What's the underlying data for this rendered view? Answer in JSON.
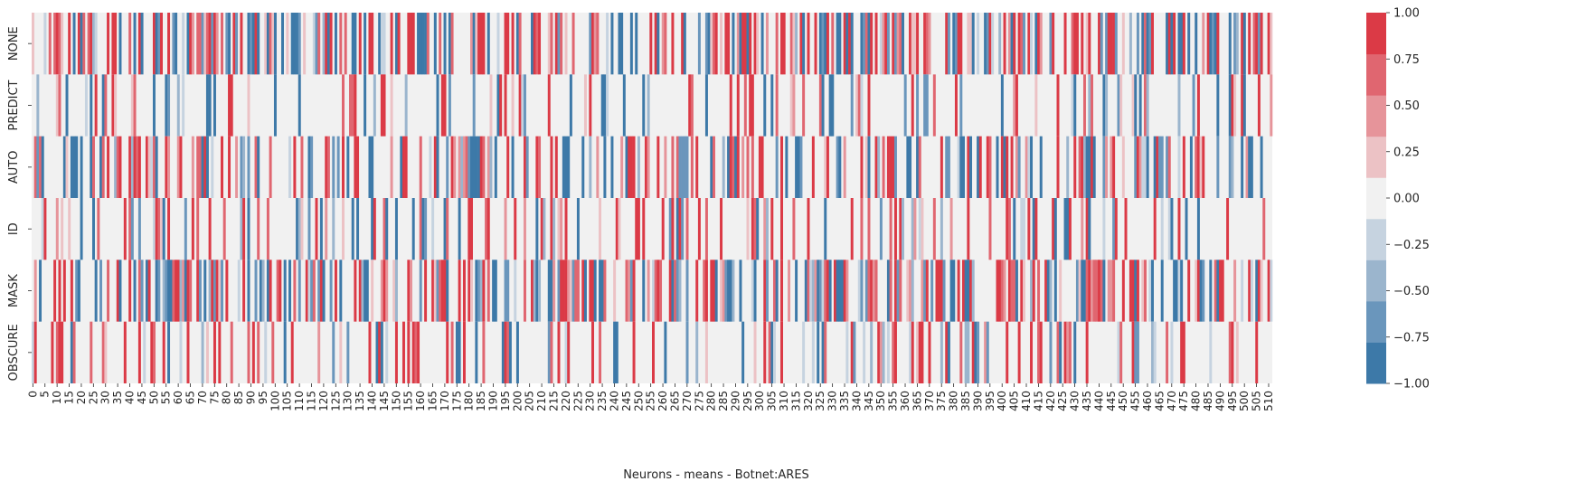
{
  "chart_data": {
    "type": "heatmap",
    "title": "",
    "xlabel": "Neurons - means - Botnet:ARES",
    "ylabel": "",
    "rows": [
      "NONE",
      "PREDICT",
      "AUTO",
      "ID",
      "MASK",
      "OBSCURE"
    ],
    "x_count": 512,
    "x_tick_step": 5,
    "value_range": [
      -1.0,
      1.0
    ],
    "colorbar": {
      "ticks": [
        "1.00",
        "0.75",
        "0.50",
        "0.25",
        "0.00",
        "−0.25",
        "−0.50",
        "−0.75",
        "−1.00"
      ],
      "levels": [
        "#3d79a8",
        "#6a96bc",
        "#9bb5cd",
        "#c6d3e0",
        "#f1f1f1",
        "#ecc2c5",
        "#e6949a",
        "#e06670",
        "#db3a46"
      ]
    },
    "values_note": "",
    "series_density": {
      "NONE": 0.55,
      "PREDICT": 0.22,
      "AUTO": 0.42,
      "ID": 0.24,
      "MASK": 0.55,
      "OBSCURE": 0.28
    }
  }
}
